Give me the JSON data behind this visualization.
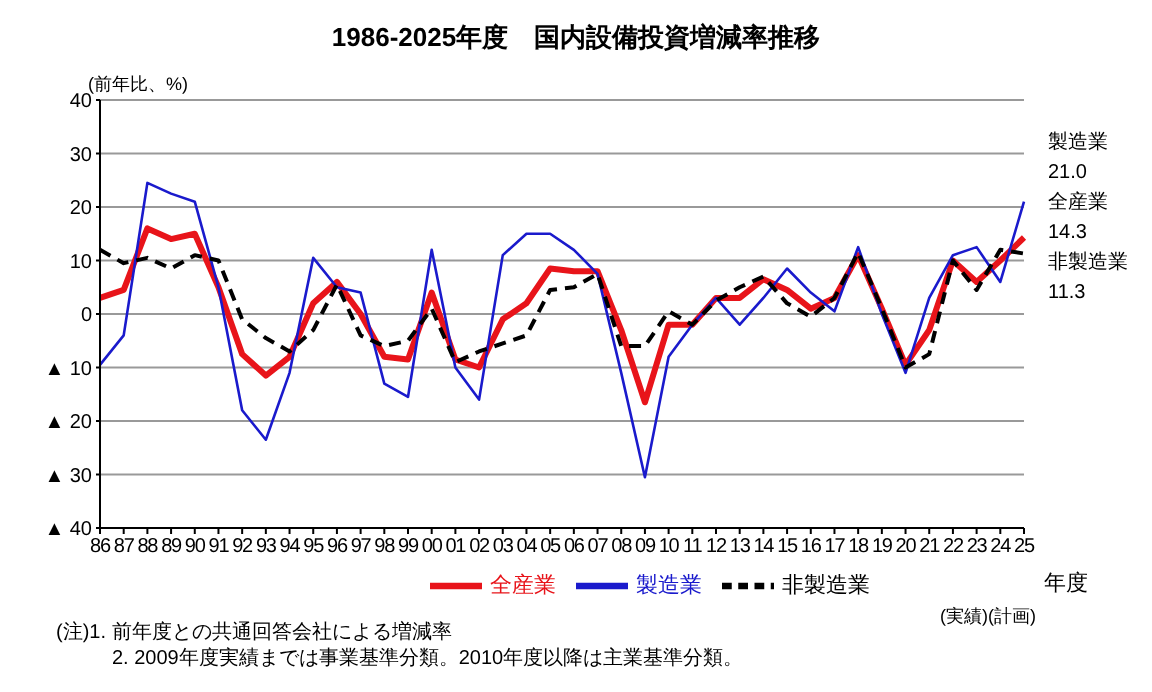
{
  "chart_data": {
    "type": "line",
    "title": "1986-2025年度　国内設備投資増減率推移",
    "xlabel": "年度",
    "ylabel": "(前年比、%)",
    "categories": [
      "86",
      "87",
      "88",
      "89",
      "90",
      "91",
      "92",
      "93",
      "94",
      "95",
      "96",
      "97",
      "98",
      "99",
      "00",
      "01",
      "02",
      "03",
      "04",
      "05",
      "06",
      "07",
      "08",
      "09",
      "10",
      "11",
      "12",
      "13",
      "14",
      "15",
      "16",
      "17",
      "18",
      "19",
      "20",
      "21",
      "22",
      "23",
      "24",
      "25"
    ],
    "series": [
      {
        "name": "全産業",
        "color": "#e8141a",
        "line_style": "solid",
        "values": [
          3,
          4.5,
          16,
          14,
          15,
          5,
          -7.5,
          -11.5,
          -8,
          2,
          6,
          0,
          -8,
          -8.5,
          4,
          -8.5,
          -10,
          -1,
          2,
          8.5,
          8,
          8,
          -3,
          -16.5,
          -2,
          -2,
          3,
          3,
          6.5,
          4.5,
          1,
          3,
          11,
          1,
          -9.5,
          -3,
          10,
          6,
          10,
          14.3
        ]
      },
      {
        "name": "製造業",
        "color": "#1a1acc",
        "line_style": "solid",
        "values": [
          -9.5,
          -4,
          24.5,
          22.5,
          21,
          5,
          -18,
          -23.5,
          -11,
          10.5,
          5,
          4,
          -13,
          -15.5,
          12,
          -10,
          -16,
          11,
          15,
          15,
          12,
          7.5,
          -11,
          -30.5,
          -8,
          -2,
          3,
          -2,
          3,
          8.5,
          4,
          0.5,
          12.5,
          0,
          -11,
          3,
          11,
          12.5,
          6,
          21.0
        ]
      },
      {
        "name": "非製造業",
        "color": "#000000",
        "line_style": "dashed",
        "values": [
          12,
          9.5,
          10.5,
          8.5,
          11,
          10,
          -1,
          -4.5,
          -7,
          -3,
          5.5,
          -4,
          -6,
          -5,
          1,
          -9,
          -7,
          -5.5,
          -4,
          4.5,
          5,
          7.5,
          -6,
          -6,
          0.5,
          -2,
          2.5,
          5,
          7,
          2,
          -0.5,
          3,
          11.5,
          1,
          -10,
          -7.5,
          10,
          4.5,
          12,
          11.3
        ]
      }
    ],
    "ylim": [
      -40,
      40
    ],
    "yticks": [
      {
        "value": -40,
        "label": "▲ 40"
      },
      {
        "value": -30,
        "label": "▲ 30"
      },
      {
        "value": -20,
        "label": "▲ 20"
      },
      {
        "value": -10,
        "label": "▲ 10"
      },
      0,
      10,
      20,
      30,
      40
    ],
    "grid": "y",
    "legend": "bottom",
    "marker": "none",
    "annotations": [
      "製造業",
      "21.0",
      "全産業",
      "14.3",
      "非製造業",
      "11.3",
      "(実績)(計画)",
      "(注)1. 前年度との共通回答会社による増減率",
      "2. 2009年度実績までは事業基準分類。2010年度以降は主業基準分類。"
    ]
  }
}
